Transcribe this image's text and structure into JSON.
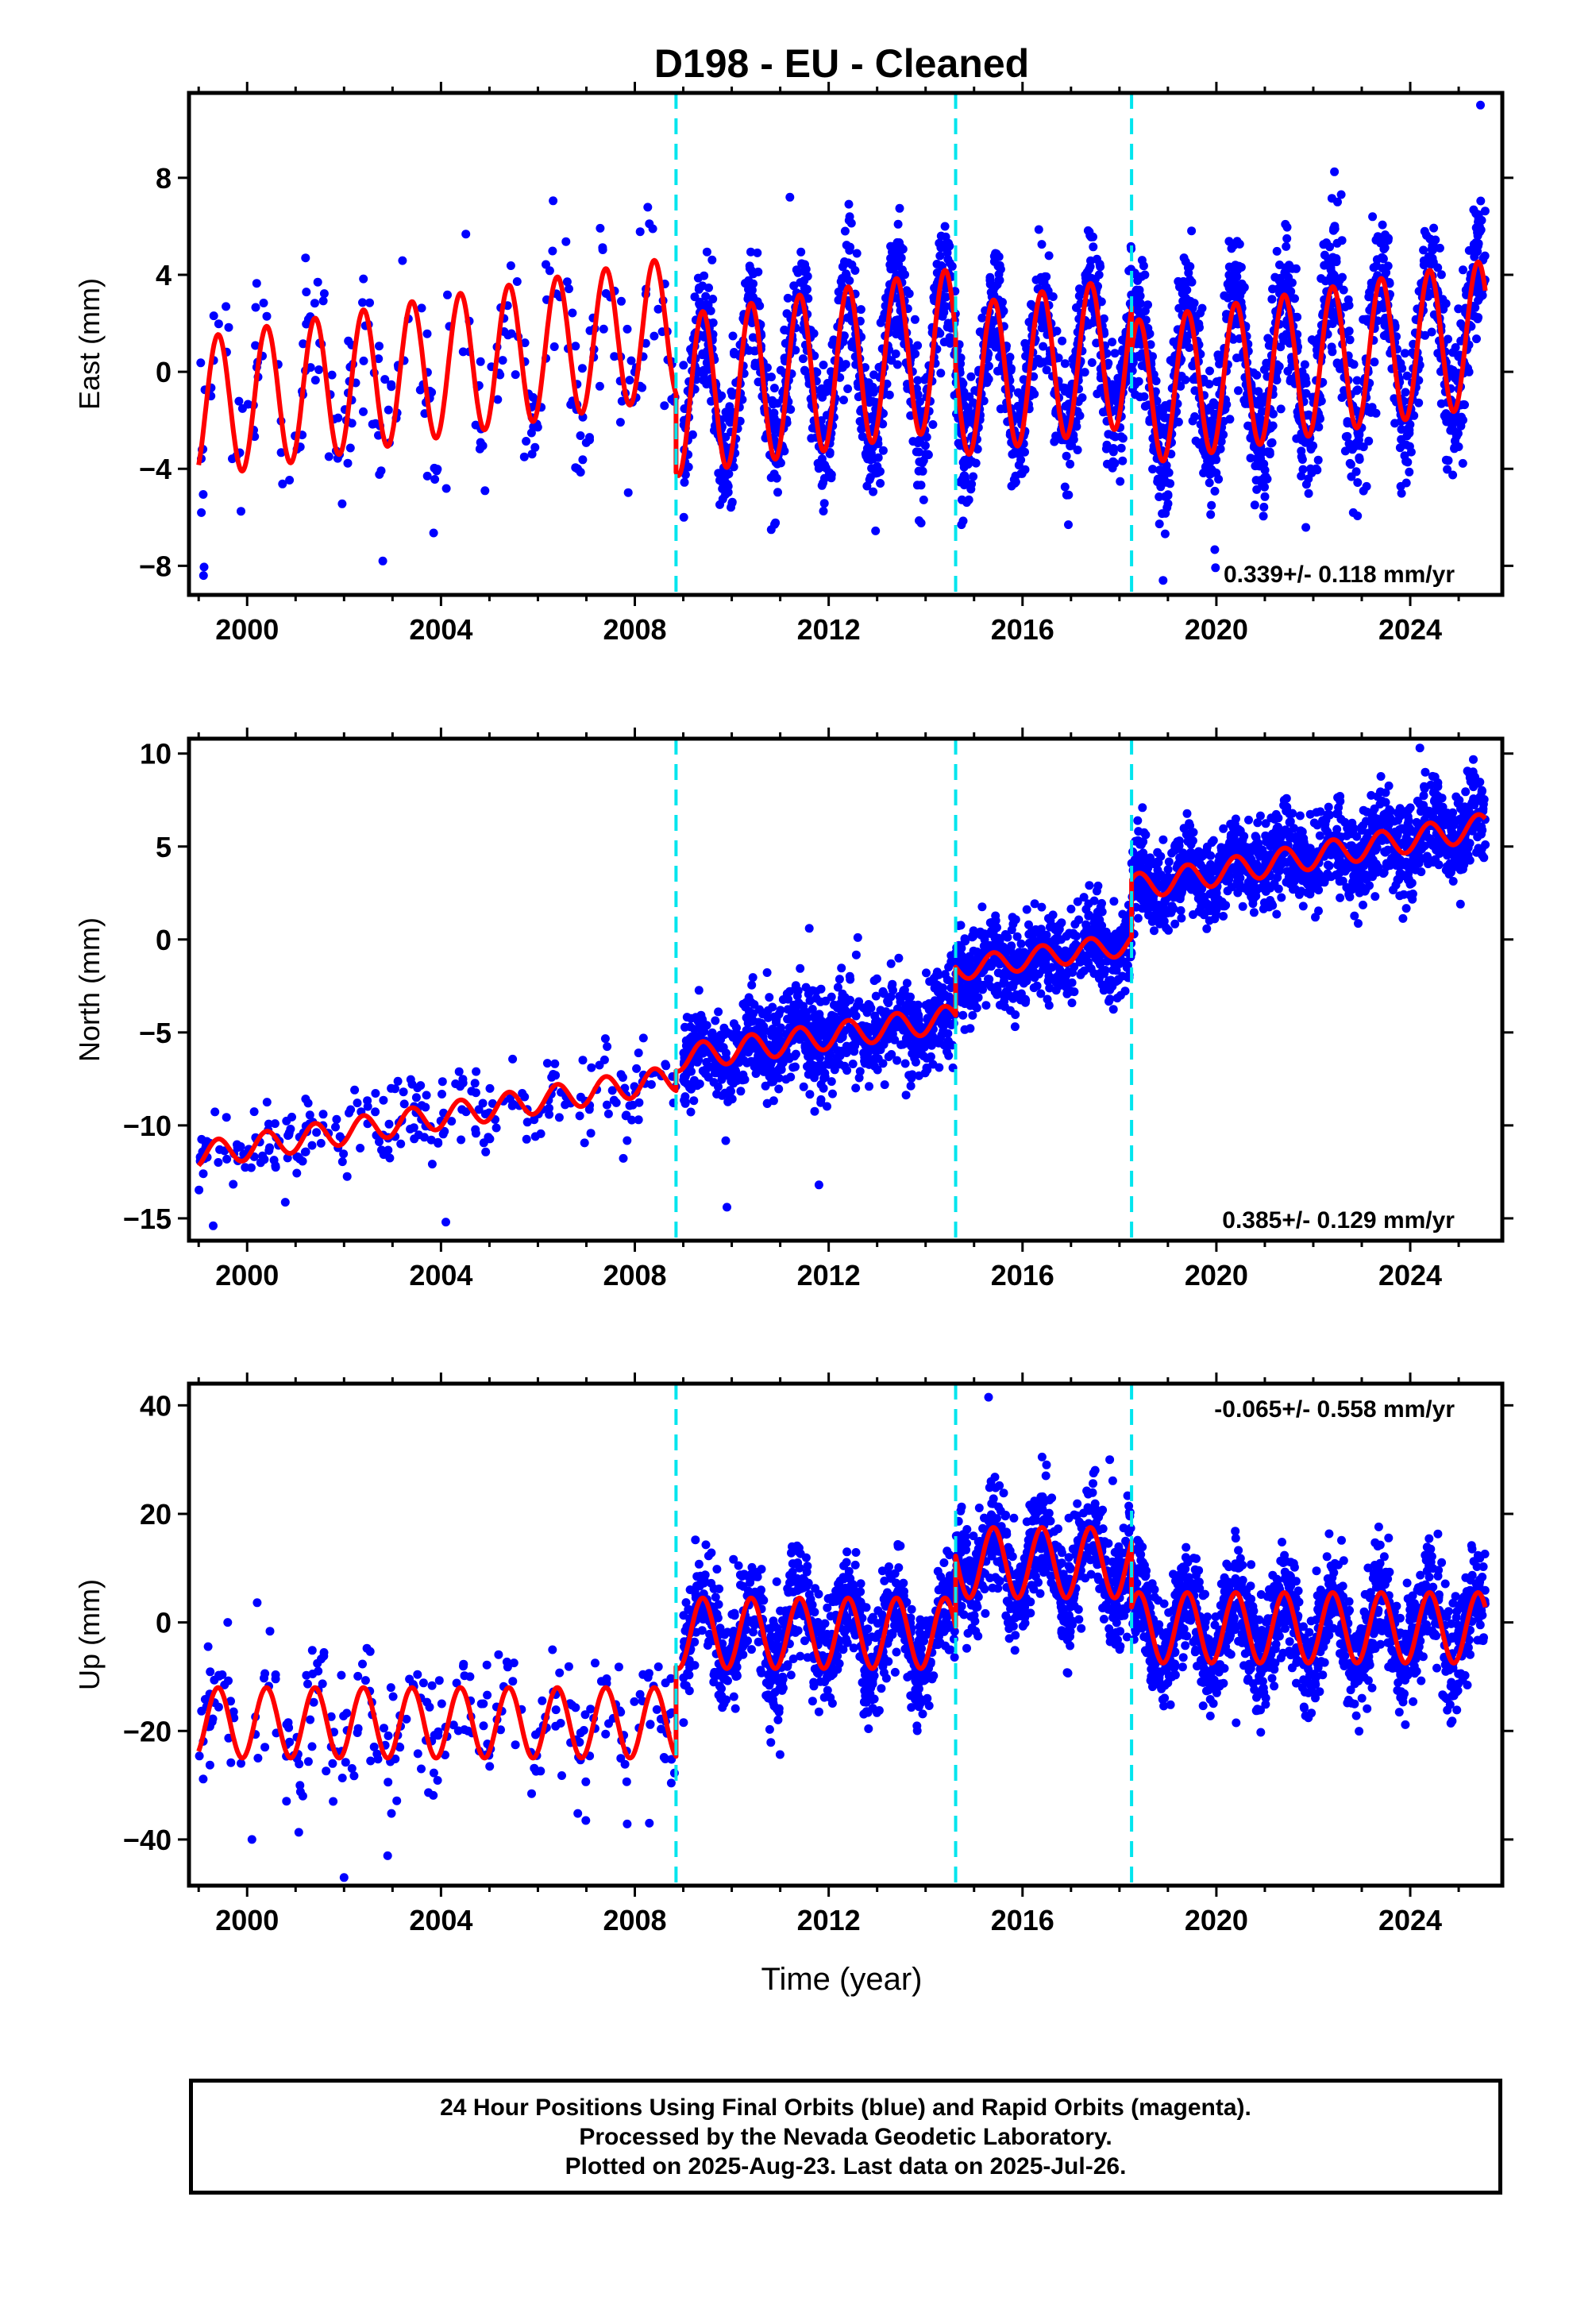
{
  "figure": {
    "title": "D198  - EU - Cleaned",
    "xlabel": "Time (year)",
    "colors": {
      "points": "#0000ff",
      "model": "#ff0000",
      "breaks": "#00e5ee",
      "frame": "#000000"
    }
  },
  "chart_data": [
    {
      "type": "scatter",
      "component": "east",
      "ylabel": "East (mm)",
      "xlim": [
        1998.8,
        2025.9
      ],
      "ylim": [
        -9.2,
        11.5
      ],
      "xticks": [
        2000,
        2004,
        2008,
        2012,
        2016,
        2020,
        2024
      ],
      "yticks": [
        -8,
        -4,
        0,
        4,
        8
      ],
      "breaks": [
        2008.85,
        2014.62,
        2018.25
      ],
      "rate_label": "0.339+/- 0.118 mm/yr",
      "rate_position": "bottom-right",
      "series": [
        {
          "name": "",
          "kind": "points",
          "segments": [
            {
              "x0": 1999.0,
              "x1": 2008.85,
              "offset": -1.5,
              "slope": 0.34,
              "amp": 2.8,
              "noise": 1.7,
              "n": 260
            },
            {
              "x0": 2009.0,
              "x1": 2014.62,
              "offset": -1.0,
              "slope": 0.34,
              "amp": 3.2,
              "noise": 1.4,
              "n": 900
            },
            {
              "x0": 2014.62,
              "x1": 2018.25,
              "offset": -0.4,
              "slope": 0.34,
              "amp": 3.0,
              "noise": 1.3,
              "n": 650
            },
            {
              "x0": 2018.25,
              "x1": 2025.55,
              "offset": -0.9,
              "slope": 0.34,
              "amp": 3.1,
              "noise": 1.5,
              "n": 1300
            }
          ],
          "extremes": [
            [
              2025.45,
              11.0
            ],
            [
              2011.2,
              7.2
            ],
            [
              2018.9,
              -8.6
            ],
            [
              1999.1,
              -8.4
            ],
            [
              2002.8,
              -7.8
            ]
          ]
        },
        {
          "name": "",
          "kind": "model",
          "segments": [
            {
              "x0": 1999.0,
              "x1": 2008.85,
              "offset": -1.5,
              "slope": 0.34,
              "amp": 2.9
            },
            {
              "x0": 2008.85,
              "x1": 2014.62,
              "offset": -1.0,
              "slope": 0.34,
              "amp": 3.3
            },
            {
              "x0": 2014.62,
              "x1": 2018.25,
              "offset": -0.4,
              "slope": 0.34,
              "amp": 3.1
            },
            {
              "x0": 2018.25,
              "x1": 2025.55,
              "offset": -0.9,
              "slope": 0.34,
              "amp": 3.0
            }
          ]
        }
      ]
    },
    {
      "type": "scatter",
      "component": "north",
      "ylabel": "North (mm)",
      "xlim": [
        1998.8,
        2025.9
      ],
      "ylim": [
        -16.2,
        10.8
      ],
      "xticks": [
        2000,
        2004,
        2008,
        2012,
        2016,
        2020,
        2024
      ],
      "yticks": [
        -15,
        -10,
        -5,
        0,
        5,
        10
      ],
      "breaks": [
        2008.85,
        2014.62,
        2018.25
      ],
      "rate_label": "0.385+/- 0.129 mm/yr",
      "rate_position": "bottom-right",
      "series": [
        {
          "name": "",
          "kind": "points",
          "segments": [
            {
              "x0": 1999.0,
              "x1": 2008.85,
              "offset": -11.6,
              "slope": 0.42,
              "amp": 0.7,
              "noise": 1.1,
              "n": 260
            },
            {
              "x0": 2009.0,
              "x1": 2014.62,
              "offset": -6.4,
              "slope": 0.38,
              "amp": 0.7,
              "noise": 1.3,
              "n": 900
            },
            {
              "x0": 2014.62,
              "x1": 2018.25,
              "offset": -1.6,
              "slope": 0.38,
              "amp": 0.6,
              "noise": 1.1,
              "n": 650
            },
            {
              "x0": 2018.25,
              "x1": 2025.55,
              "offset": 2.8,
              "slope": 0.45,
              "amp": 0.7,
              "noise": 1.2,
              "n": 1300
            }
          ],
          "extremes": [
            [
              2024.2,
              10.3
            ],
            [
              2011.6,
              0.6
            ],
            [
              1999.3,
              -15.4
            ],
            [
              2004.1,
              -15.2
            ],
            [
              2009.9,
              -14.4
            ],
            [
              2011.8,
              -13.2
            ]
          ]
        },
        {
          "name": "",
          "kind": "model",
          "segments": [
            {
              "x0": 1999.0,
              "x1": 2008.85,
              "offset": -11.6,
              "slope": 0.42,
              "amp": 0.7
            },
            {
              "x0": 2008.85,
              "x1": 2014.62,
              "offset": -6.4,
              "slope": 0.38,
              "amp": 0.7
            },
            {
              "x0": 2014.62,
              "x1": 2018.25,
              "offset": -1.6,
              "slope": 0.38,
              "amp": 0.6
            },
            {
              "x0": 2018.25,
              "x1": 2025.55,
              "offset": 2.8,
              "slope": 0.45,
              "amp": 0.7
            }
          ]
        }
      ]
    },
    {
      "type": "scatter",
      "component": "up",
      "ylabel": "Up (mm)",
      "xlim": [
        1998.8,
        2025.9
      ],
      "ylim": [
        -48.5,
        44.0
      ],
      "xticks": [
        2000,
        2004,
        2008,
        2012,
        2016,
        2020,
        2024
      ],
      "yticks": [
        -40,
        -20,
        0,
        20,
        40
      ],
      "breaks": [
        2008.85,
        2014.62,
        2018.25
      ],
      "rate_label": "-0.065+/- 0.558 mm/yr",
      "rate_position": "top-right",
      "series": [
        {
          "name": "",
          "kind": "points",
          "segments": [
            {
              "x0": 1999.0,
              "x1": 2008.85,
              "offset": -18.5,
              "slope": 0.0,
              "amp": 6.5,
              "noise": 6.0,
              "n": 260
            },
            {
              "x0": 2009.0,
              "x1": 2014.62,
              "offset": -2.0,
              "slope": 0.0,
              "amp": 6.5,
              "noise": 5.0,
              "n": 900
            },
            {
              "x0": 2014.62,
              "x1": 2018.25,
              "offset": 11.0,
              "slope": 0.0,
              "amp": 6.5,
              "noise": 5.0,
              "n": 650
            },
            {
              "x0": 2018.25,
              "x1": 2025.55,
              "offset": -1.0,
              "slope": 0.0,
              "amp": 6.5,
              "noise": 5.0,
              "n": 1300
            }
          ],
          "extremes": [
            [
              2015.3,
              41.5
            ],
            [
              2017.8,
              30.0
            ],
            [
              2002.0,
              -47.0
            ],
            [
              2002.9,
              -43.0
            ],
            [
              2000.1,
              -40.0
            ],
            [
              2008.3,
              -37.0
            ],
            [
              1999.6,
              0.0
            ]
          ]
        },
        {
          "name": "",
          "kind": "model",
          "segments": [
            {
              "x0": 1999.0,
              "x1": 2008.85,
              "offset": -18.5,
              "slope": 0.0,
              "amp": 6.5
            },
            {
              "x0": 2008.85,
              "x1": 2014.62,
              "offset": -2.0,
              "slope": 0.0,
              "amp": 6.5
            },
            {
              "x0": 2014.62,
              "x1": 2018.25,
              "offset": 11.0,
              "slope": 0.0,
              "amp": 6.5
            },
            {
              "x0": 2018.25,
              "x1": 2025.55,
              "offset": -1.0,
              "slope": 0.0,
              "amp": 6.5
            }
          ]
        }
      ]
    }
  ],
  "caption": {
    "line1": "24 Hour Positions Using Final Orbits (blue) and Rapid Orbits (magenta).",
    "line2": "Processed by the Nevada Geodetic Laboratory.",
    "line3": "Plotted on 2025-Aug-23. Last data on 2025-Jul-26."
  }
}
